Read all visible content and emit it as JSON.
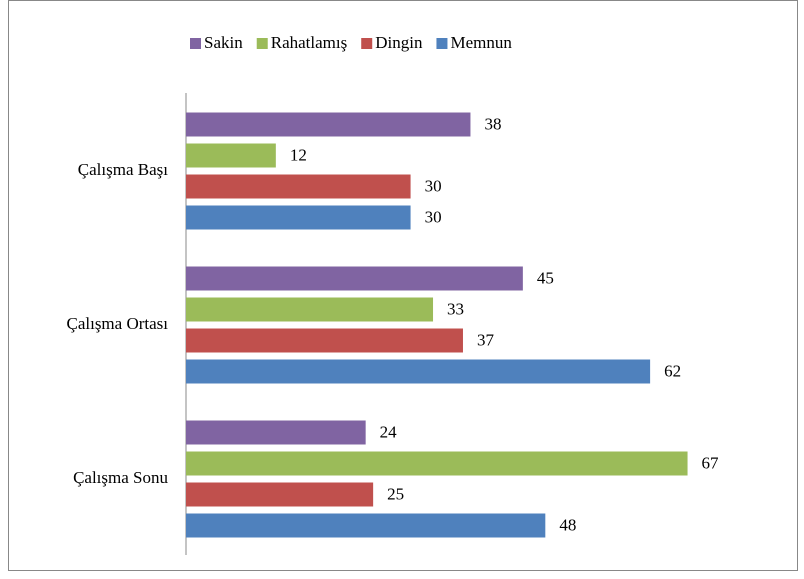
{
  "chart_data": {
    "type": "bar",
    "orientation": "horizontal",
    "categories": [
      "Çalışma Başı",
      "Çalışma Ortası",
      "Çalışma Sonu"
    ],
    "series": [
      {
        "name": "Sakin",
        "color": "#8064a2",
        "values": [
          38,
          45,
          24
        ]
      },
      {
        "name": "Rahatlamış",
        "color": "#9bbb59",
        "values": [
          12,
          33,
          67
        ]
      },
      {
        "name": "Dingin",
        "color": "#c0504d",
        "values": [
          30,
          37,
          25
        ]
      },
      {
        "name": "Memnun",
        "color": "#4f81bd",
        "values": [
          30,
          62,
          48
        ]
      }
    ],
    "xlim": [
      0,
      70
    ],
    "legend": "top"
  }
}
